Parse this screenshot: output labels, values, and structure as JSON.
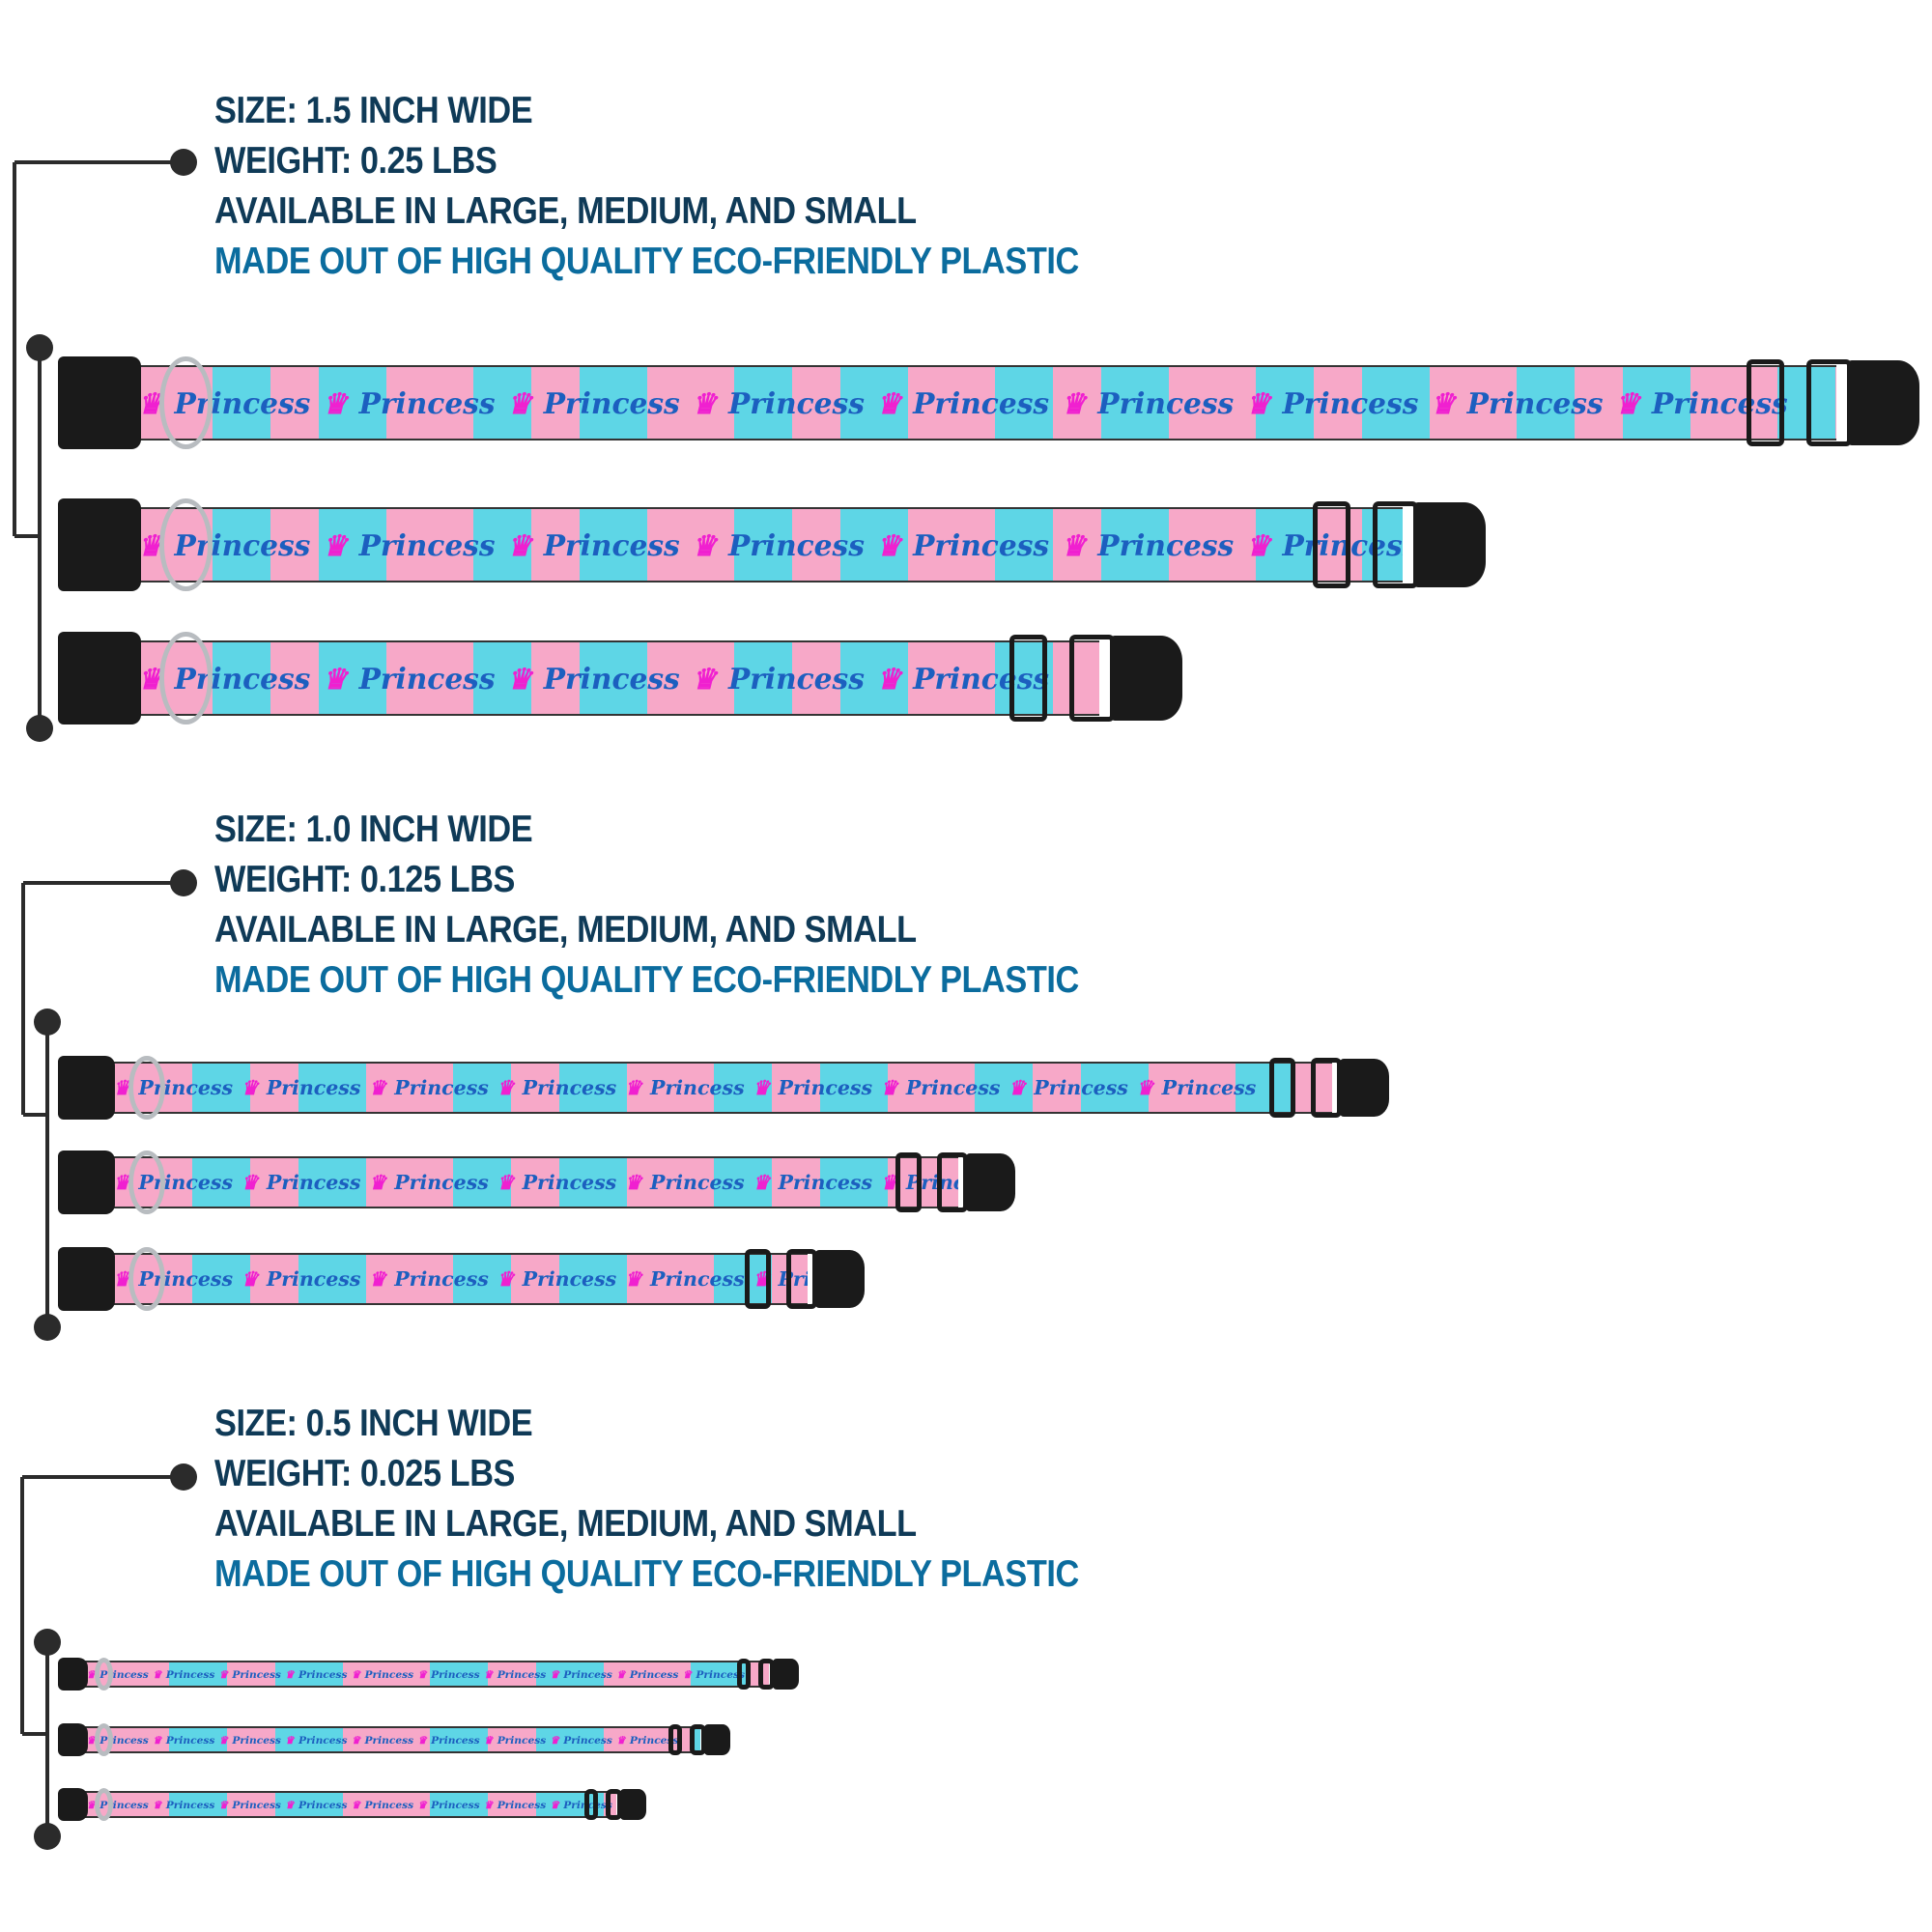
{
  "colors": {
    "heading": "#0f3a57",
    "highlight": "#0b6c9e",
    "strap_pink": "#f7a8c8",
    "strap_cyan": "#5ed6e6",
    "crown": "#f020d0",
    "hardware": "#1a1a1a"
  },
  "strap_pattern_text": "Princess",
  "sections": [
    {
      "size": "SIZE: 1.5 INCH WIDE",
      "weight": "WEIGHT: 0.25 LBS",
      "availability": "AVAILABLE IN LARGE, MEDIUM, AND SMALL",
      "material": "MADE OUT OF HIGH QUALITY ECO-FRIENDLY PLASTIC",
      "collars": [
        "Large",
        "Medium",
        "Small"
      ]
    },
    {
      "size": "SIZE: 1.0 INCH WIDE",
      "weight": "WEIGHT: 0.125 LBS",
      "availability": "AVAILABLE IN LARGE, MEDIUM, AND SMALL",
      "material": "MADE OUT OF HIGH QUALITY ECO-FRIENDLY PLASTIC",
      "collars": [
        "Large",
        "Medium",
        "Small"
      ]
    },
    {
      "size": "SIZE: 0.5 INCH WIDE",
      "weight": "WEIGHT: 0.025 LBS",
      "availability": "AVAILABLE IN LARGE, MEDIUM, AND SMALL",
      "material": "MADE OUT OF HIGH QUALITY ECO-FRIENDLY PLASTIC",
      "collars": [
        "Large",
        "Medium",
        "Small"
      ]
    }
  ]
}
